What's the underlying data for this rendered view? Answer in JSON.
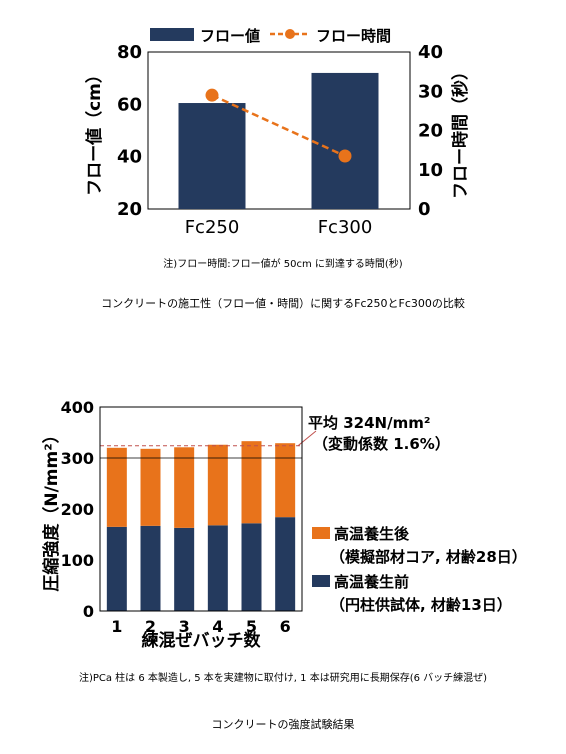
{
  "chart_data": [
    {
      "type": "bar",
      "categories": [
        "Fc250",
        "Fc300"
      ],
      "series": [
        {
          "name": "フロー値",
          "type": "bar",
          "axis": "left",
          "values": [
            60.5,
            72
          ],
          "color": "#243a5e"
        },
        {
          "name": "フロー時間",
          "type": "line",
          "axis": "right",
          "values": [
            29,
            13.5
          ],
          "color": "#e8731b"
        }
      ],
      "ylabel": "フロー値（cm）",
      "ylim": [
        20,
        80
      ],
      "yticks": [
        20,
        40,
        60,
        80
      ],
      "ylabel_right": "フロー時間（秒）",
      "ylim_right": [
        0,
        40
      ],
      "yticks_right": [
        0,
        10,
        20,
        30,
        40
      ],
      "legend_position": "top",
      "note": "注)フロー時間:フロー値が 50cm に到達する時間(秒)",
      "caption": "コンクリートの施工性（フロー値・時間）に関するFc250とFc300の比較"
    },
    {
      "type": "bar",
      "stacked": true,
      "categories": [
        "1",
        "2",
        "3",
        "4",
        "5",
        "6"
      ],
      "xlabel": "練混ぜバッチ数",
      "ylabel": "圧縮強度（N/mm²）",
      "ylim": [
        0,
        400
      ],
      "yticks": [
        0,
        100,
        200,
        300,
        400
      ],
      "series": [
        {
          "name": "高温養生前",
          "sub": "（円柱供試体, 材齢13日）",
          "values": [
            165,
            167,
            163,
            168,
            172,
            184
          ],
          "color": "#243a5e"
        },
        {
          "name": "高温養生後",
          "sub": "（模擬部材コア, 材齢28日）",
          "values": [
            155,
            151,
            158,
            158,
            161,
            145
          ],
          "color": "#e8731b"
        }
      ],
      "reference_line": {
        "value": 300,
        "style": "solid"
      },
      "average_line": {
        "value": 324,
        "label1": "平均 324N/mm²",
        "label2": "（変動係数 1.6%）",
        "color": "#c0504d"
      },
      "legend_position": "right",
      "note": "注)PCa 柱は 6 本製造し, 5 本を実建物に取付け, 1 本は研究用に長期保存(6 バッチ練混ぜ)",
      "caption": "コンクリートの強度試験結果"
    }
  ]
}
